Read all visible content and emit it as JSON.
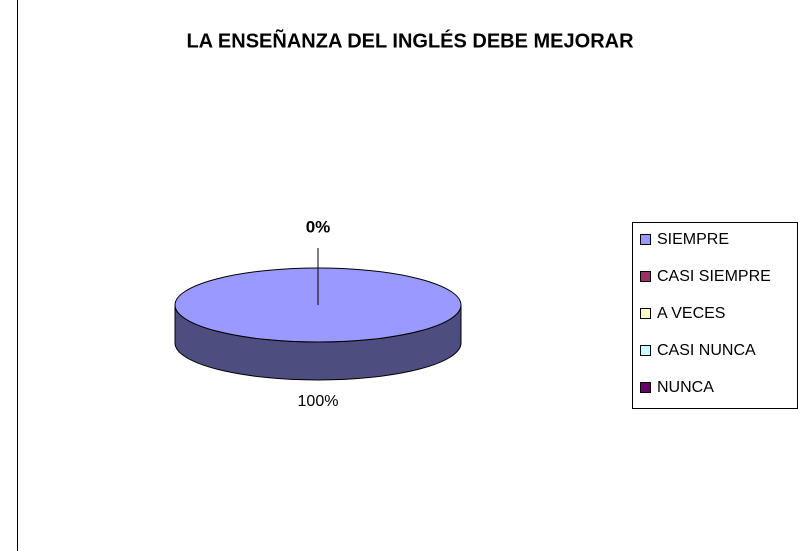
{
  "chart_data": {
    "type": "pie3d",
    "title": "LA ENSEÑANZA DEL INGLÉS DEBE MEJORAR",
    "categories": [
      "SIEMPRE",
      "CASI SIEMPRE",
      "A VECES",
      "CASI NUNCA",
      "NUNCA"
    ],
    "values": [
      100,
      0,
      0,
      0,
      0
    ],
    "value_labels": [
      "100%",
      "0%",
      null,
      null,
      null
    ],
    "colors": [
      "#9999ff",
      "#993366",
      "#ffffcc",
      "#ccffff",
      "#660066"
    ],
    "legend": "right"
  }
}
